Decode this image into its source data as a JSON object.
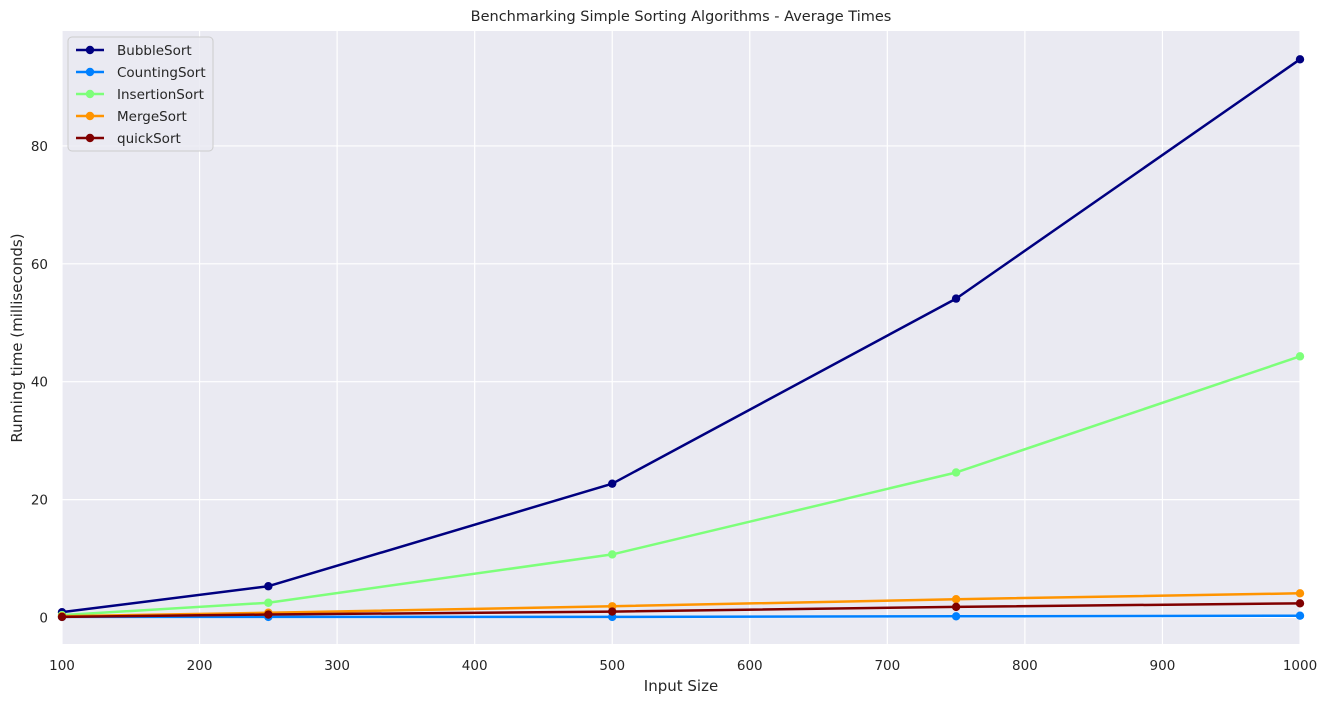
{
  "chart_data": {
    "type": "line",
    "title": "Benchmarking Simple Sorting Algorithms - Average Times",
    "xlabel": "Input Size",
    "ylabel": "Running time (milliseconds)",
    "x": [
      100,
      250,
      500,
      750,
      1000
    ],
    "xlim": [
      100,
      1000
    ],
    "ylim": [
      -4.5,
      99.5
    ],
    "xticks": [
      100,
      200,
      300,
      400,
      500,
      600,
      700,
      800,
      900,
      1000
    ],
    "yticks": [
      0,
      20,
      40,
      60,
      80
    ],
    "grid": true,
    "legend_position": "top-left",
    "series": [
      {
        "name": "BubbleSort",
        "color": "#000080",
        "values": [
          0.9,
          5.3,
          22.7,
          54.1,
          94.7
        ]
      },
      {
        "name": "CountingSort",
        "color": "#0080ff",
        "values": [
          0.1,
          0.1,
          0.1,
          0.2,
          0.3
        ]
      },
      {
        "name": "InsertionSort",
        "color": "#7dff7a",
        "values": [
          0.4,
          2.5,
          10.7,
          24.6,
          44.3
        ]
      },
      {
        "name": "MergeSort",
        "color": "#ff9400",
        "values": [
          0.2,
          0.8,
          1.9,
          3.1,
          4.1
        ]
      },
      {
        "name": "quickSort",
        "color": "#800000",
        "values": [
          0.1,
          0.5,
          1.0,
          1.8,
          2.4
        ]
      }
    ]
  }
}
